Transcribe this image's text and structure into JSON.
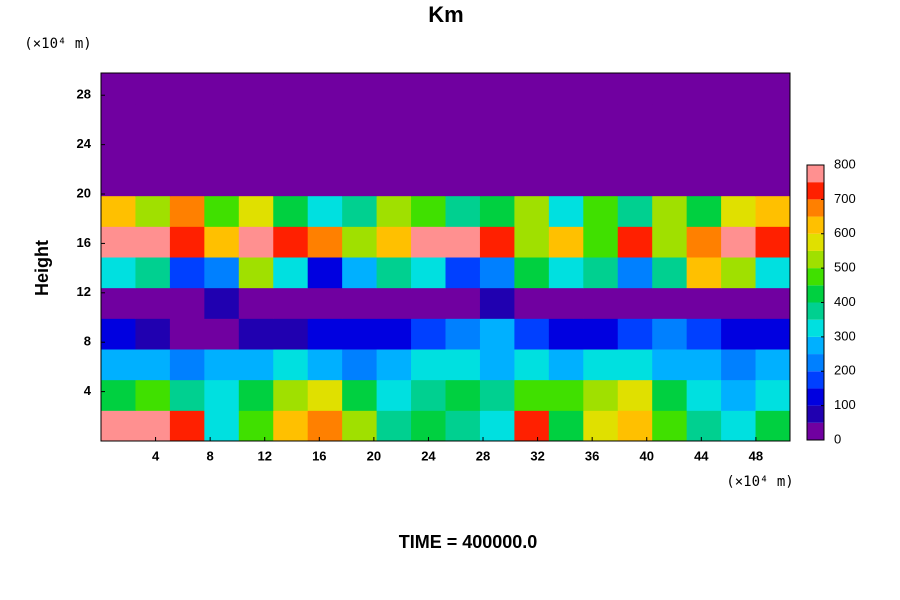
{
  "chart_data": {
    "type": "heatmap",
    "title": "Km",
    "y_label": "Height",
    "x_unit": "(×10⁴ m)",
    "y_unit": "(×10⁴ m)",
    "footer": "TIME = 400000.0",
    "xlim": [
      0,
      50.5
    ],
    "ylim": [
      0,
      29.8
    ],
    "xticks": [
      4,
      8,
      12,
      16,
      20,
      24,
      28,
      32,
      36,
      40,
      44,
      48
    ],
    "yticks": [
      4,
      8,
      12,
      16,
      20,
      24,
      28
    ],
    "zlim": [
      0,
      800
    ],
    "zticks": [
      0,
      100,
      200,
      300,
      400,
      500,
      600,
      700,
      800
    ],
    "levels": [
      0,
      50,
      100,
      150,
      200,
      250,
      300,
      350,
      400,
      450,
      500,
      550,
      600,
      650,
      700,
      750,
      800
    ],
    "colors": [
      "#7000a0",
      "#2000b0",
      "#0000e0",
      "#0040ff",
      "#0080ff",
      "#00b0ff",
      "#00e0e0",
      "#00d090",
      "#00d040",
      "#40e000",
      "#a0e000",
      "#e0e000",
      "#ffc000",
      "#ff8000",
      "#ff2000",
      "#ff9090"
    ],
    "z": [
      [
        800,
        800,
        700,
        300,
        450,
        600,
        650,
        500,
        350,
        400,
        350,
        300,
        700,
        400,
        550,
        600,
        450,
        350,
        300,
        400
      ],
      [
        400,
        450,
        350,
        300,
        400,
        500,
        550,
        400,
        300,
        350,
        400,
        350,
        450,
        450,
        500,
        550,
        400,
        300,
        250,
        300
      ],
      [
        250,
        250,
        200,
        250,
        250,
        300,
        250,
        200,
        250,
        300,
        300,
        250,
        300,
        250,
        300,
        300,
        250,
        250,
        200,
        250
      ],
      [
        100,
        50,
        0,
        0,
        50,
        50,
        100,
        100,
        100,
        150,
        200,
        250,
        150,
        100,
        100,
        150,
        200,
        150,
        100,
        100
      ],
      [
        0,
        0,
        0,
        50,
        0,
        0,
        0,
        0,
        0,
        0,
        0,
        50,
        0,
        0,
        0,
        0,
        0,
        0,
        0,
        0
      ],
      [
        300,
        350,
        150,
        200,
        500,
        300,
        100,
        250,
        350,
        300,
        150,
        200,
        400,
        300,
        350,
        200,
        350,
        600,
        500,
        300
      ],
      [
        800,
        800,
        700,
        600,
        800,
        700,
        650,
        500,
        600,
        800,
        800,
        700,
        500,
        600,
        450,
        700,
        500,
        650,
        800,
        700
      ],
      [
        600,
        500,
        650,
        450,
        550,
        400,
        300,
        350,
        500,
        450,
        350,
        400,
        500,
        300,
        450,
        350,
        500,
        400,
        550,
        600
      ],
      [
        0,
        0,
        0,
        0,
        0,
        0,
        0,
        0,
        0,
        0,
        0,
        0,
        0,
        0,
        0,
        0,
        0,
        0,
        0,
        0
      ],
      [
        0,
        0,
        0,
        0,
        0,
        0,
        0,
        0,
        0,
        0,
        0,
        0,
        0,
        0,
        0,
        0,
        0,
        0,
        0,
        0
      ],
      [
        0,
        0,
        0,
        0,
        0,
        0,
        0,
        0,
        0,
        0,
        0,
        0,
        0,
        0,
        0,
        0,
        0,
        0,
        0,
        0
      ],
      [
        0,
        0,
        0,
        0,
        0,
        0,
        0,
        0,
        0,
        0,
        0,
        0,
        0,
        0,
        0,
        0,
        0,
        0,
        0,
        0
      ]
    ]
  }
}
